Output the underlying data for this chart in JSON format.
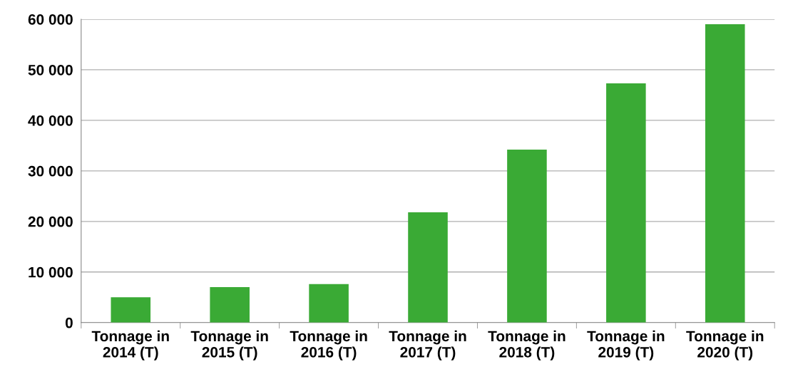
{
  "chart_data": {
    "type": "bar",
    "categories": [
      "Tonnage in\n2014 (T)",
      "Tonnage in\n2015 (T)",
      "Tonnage in\n2016 (T)",
      "Tonnage in\n2017 (T)",
      "Tonnage in\n2018 (T)",
      "Tonnage in\n2019 (T)",
      "Tonnage in\n2020 (T)"
    ],
    "values": [
      5000,
      7000,
      7600,
      21800,
      34200,
      47300,
      59000
    ],
    "color": "#3aaa35",
    "ylim": [
      0,
      60000
    ],
    "yticks": [
      {
        "value": 0,
        "label": "0"
      },
      {
        "value": 10000,
        "label": "10 000"
      },
      {
        "value": 20000,
        "label": "20 000"
      },
      {
        "value": 30000,
        "label": "30 000"
      },
      {
        "value": 40000,
        "label": "40 000"
      },
      {
        "value": 50000,
        "label": "50 000"
      },
      {
        "value": 60000,
        "label": "60 000"
      }
    ],
    "grid": "y",
    "legend": false
  }
}
